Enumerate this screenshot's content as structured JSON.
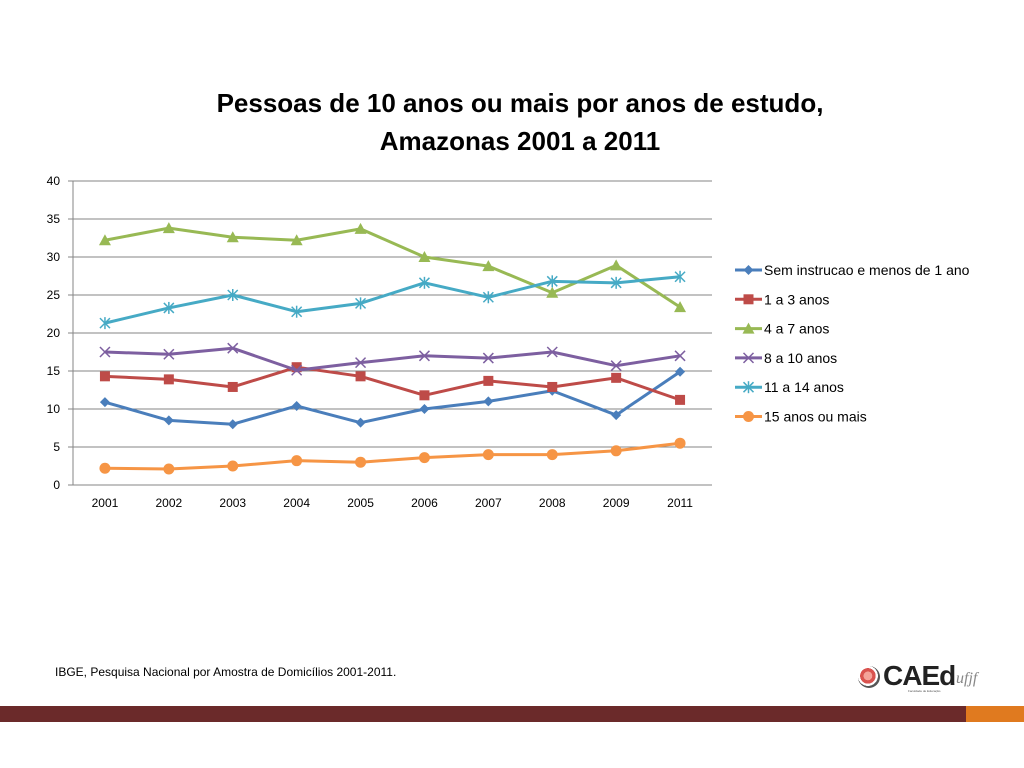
{
  "chart_data": {
    "type": "line",
    "title": "Pessoas de 10 anos ou mais por anos de estudo, Amazonas 2001 a 2011",
    "title_lines": [
      "Pessoas de 10 anos ou mais por anos de estudo,",
      "Amazonas 2001 a 2011"
    ],
    "xlabel": "",
    "ylabel": "",
    "categories": [
      "2001",
      "2002",
      "2003",
      "2004",
      "2005",
      "2006",
      "2007",
      "2008",
      "2009",
      "2011"
    ],
    "ylim": [
      0,
      40
    ],
    "yticks": [
      0,
      5,
      10,
      15,
      20,
      25,
      30,
      35,
      40
    ],
    "grid": true,
    "legend_position": "right",
    "series": [
      {
        "name": "Sem instrucao e menos de 1 ano",
        "color": "#4a7ebb",
        "marker": "diamond",
        "values": [
          10.9,
          8.5,
          8.0,
          10.4,
          8.2,
          10.0,
          11.0,
          12.4,
          9.2,
          14.9
        ]
      },
      {
        "name": "1 a 3 anos",
        "color": "#be4b48",
        "marker": "square",
        "values": [
          14.3,
          13.9,
          12.9,
          15.5,
          14.3,
          11.8,
          13.7,
          12.9,
          14.1,
          11.2
        ]
      },
      {
        "name": "4 a 7 anos",
        "color": "#98b954",
        "marker": "triangle",
        "values": [
          32.2,
          33.8,
          32.6,
          32.2,
          33.7,
          30.0,
          28.8,
          25.3,
          28.9,
          23.4
        ]
      },
      {
        "name": "8 a 10 anos",
        "color": "#7d5fa0",
        "marker": "x",
        "values": [
          17.5,
          17.2,
          18.0,
          15.1,
          16.1,
          17.0,
          16.7,
          17.5,
          15.7,
          17.0
        ]
      },
      {
        "name": "11 a 14 anos",
        "color": "#46aac5",
        "marker": "star",
        "values": [
          21.3,
          23.3,
          25.0,
          22.8,
          23.9,
          26.6,
          24.7,
          26.8,
          26.6,
          27.4
        ]
      },
      {
        "name": "15 anos ou mais",
        "color": "#f69545",
        "marker": "circle",
        "values": [
          2.2,
          2.1,
          2.5,
          3.2,
          3.0,
          3.6,
          4.0,
          4.0,
          4.5,
          5.5
        ]
      }
    ]
  },
  "footer": {
    "source": "IBGE, Pesquisa Nacional por Amostra de Domicílios 2001-2011.",
    "logo_text": "CAEd",
    "logo_sub": "ufjf",
    "logo_caption": "Faculdade de Educação"
  },
  "colors": {
    "footer_bar": "#6b2a2a",
    "footer_accent": "#e07a1f"
  }
}
